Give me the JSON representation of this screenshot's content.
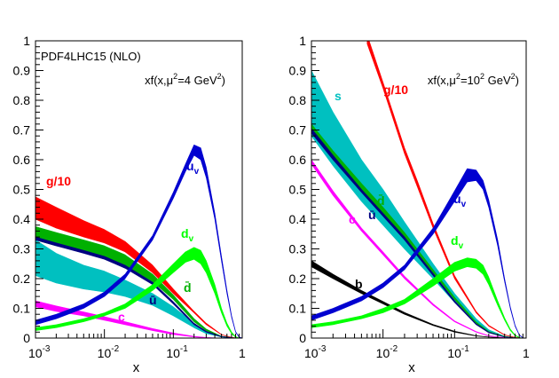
{
  "chart_data": [
    {
      "type": "area",
      "title": "PDF4LHC15 (NLO)",
      "annotation": "xf(x,μ²=4 GeV²)",
      "annotation_parts": [
        "xf(x,",
        "μ",
        "2",
        "=4 GeV",
        "2",
        ")"
      ],
      "xlabel": "x",
      "ylabel": "",
      "xscale": "log",
      "xlim": [
        0.001,
        1
      ],
      "ylim": [
        0,
        1
      ],
      "yticks": [
        "0",
        "0.1",
        "0.2",
        "0.3",
        "0.4",
        "0.5",
        "0.6",
        "0.7",
        "0.8",
        "0.9",
        "1"
      ],
      "xticks": [
        {
          "base": "10",
          "exp": "-3"
        },
        {
          "base": "10",
          "exp": "-2"
        },
        {
          "base": "10",
          "exp": "-1"
        },
        {
          "base": "1",
          "exp": ""
        }
      ],
      "series": [
        {
          "name": "s",
          "label": "s",
          "show_label": false,
          "color": "#00c0c0",
          "x": [
            0.001,
            0.002,
            0.005,
            0.01,
            0.02,
            0.05,
            0.1,
            0.2,
            0.3,
            0.5,
            0.7,
            0.9
          ],
          "lower": [
            0.21,
            0.185,
            0.165,
            0.155,
            0.14,
            0.11,
            0.075,
            0.035,
            0.015,
            0.004,
            0.001,
            0
          ],
          "upper": [
            0.33,
            0.285,
            0.245,
            0.225,
            0.195,
            0.15,
            0.105,
            0.05,
            0.022,
            0.006,
            0.0015,
            0
          ]
        },
        {
          "name": "g/10",
          "label": "g/10",
          "show_label": true,
          "color": "#ff0000",
          "x": [
            0.001,
            0.002,
            0.005,
            0.01,
            0.02,
            0.05,
            0.1,
            0.2,
            0.3,
            0.5,
            0.7,
            0.9
          ],
          "lower": [
            0.4,
            0.37,
            0.34,
            0.32,
            0.29,
            0.22,
            0.15,
            0.085,
            0.045,
            0.011,
            0.002,
            0
          ],
          "upper": [
            0.475,
            0.44,
            0.395,
            0.365,
            0.325,
            0.245,
            0.165,
            0.09,
            0.05,
            0.012,
            0.0025,
            0
          ]
        },
        {
          "name": "dbar",
          "label": "d̄",
          "show_label": true,
          "color": "#00b000",
          "x": [
            0.001,
            0.002,
            0.005,
            0.01,
            0.02,
            0.05,
            0.1,
            0.2,
            0.3,
            0.5,
            0.7,
            0.9
          ],
          "lower": [
            0.33,
            0.31,
            0.29,
            0.27,
            0.245,
            0.19,
            0.13,
            0.055,
            0.025,
            0.005,
            0.001,
            0
          ],
          "upper": [
            0.375,
            0.355,
            0.33,
            0.31,
            0.28,
            0.215,
            0.145,
            0.065,
            0.03,
            0.006,
            0.0015,
            0
          ]
        },
        {
          "name": "ubar",
          "label": "ū",
          "show_label": true,
          "color": "#000080",
          "x": [
            0.001,
            0.002,
            0.005,
            0.01,
            0.02,
            0.05,
            0.1,
            0.2,
            0.3,
            0.5,
            0.7,
            0.9
          ],
          "lower": [
            0.33,
            0.31,
            0.285,
            0.265,
            0.235,
            0.18,
            0.115,
            0.045,
            0.02,
            0.004,
            0.001,
            0
          ],
          "upper": [
            0.34,
            0.32,
            0.295,
            0.275,
            0.245,
            0.188,
            0.122,
            0.05,
            0.023,
            0.005,
            0.0012,
            0
          ]
        },
        {
          "name": "c",
          "label": "c",
          "show_label": true,
          "color": "#ff00ff",
          "x": [
            0.001,
            0.002,
            0.005,
            0.01,
            0.02,
            0.05,
            0.1,
            0.2,
            0.3,
            0.5,
            0.7,
            0.9
          ],
          "lower": [
            0.105,
            0.09,
            0.075,
            0.06,
            0.045,
            0.025,
            0.012,
            0.004,
            0.001,
            0,
            0,
            0
          ],
          "upper": [
            0.125,
            0.108,
            0.088,
            0.072,
            0.055,
            0.032,
            0.017,
            0.006,
            0.002,
            0,
            0,
            0
          ]
        },
        {
          "name": "u_v",
          "label": "u",
          "sub": "v",
          "show_label": true,
          "color": "#0000d0",
          "x": [
            0.001,
            0.002,
            0.005,
            0.01,
            0.02,
            0.05,
            0.1,
            0.15,
            0.2,
            0.25,
            0.3,
            0.4,
            0.5,
            0.6,
            0.7,
            0.8,
            0.9,
            1.0
          ],
          "lower": [
            0.045,
            0.065,
            0.1,
            0.14,
            0.2,
            0.33,
            0.47,
            0.56,
            0.615,
            0.6,
            0.54,
            0.4,
            0.26,
            0.15,
            0.07,
            0.02,
            0.003,
            0
          ],
          "upper": [
            0.06,
            0.08,
            0.115,
            0.155,
            0.215,
            0.345,
            0.49,
            0.585,
            0.65,
            0.64,
            0.575,
            0.42,
            0.275,
            0.16,
            0.075,
            0.022,
            0.004,
            0
          ]
        },
        {
          "name": "d_v",
          "label": "d",
          "sub": "v",
          "show_label": true,
          "color": "#00ff00",
          "x": [
            0.001,
            0.002,
            0.005,
            0.01,
            0.02,
            0.05,
            0.1,
            0.15,
            0.2,
            0.25,
            0.3,
            0.4,
            0.5,
            0.6,
            0.7,
            0.8,
            0.9,
            1.0
          ],
          "lower": [
            0.025,
            0.035,
            0.055,
            0.075,
            0.1,
            0.16,
            0.22,
            0.255,
            0.265,
            0.25,
            0.22,
            0.15,
            0.085,
            0.04,
            0.015,
            0.003,
            0,
            0
          ],
          "upper": [
            0.035,
            0.045,
            0.065,
            0.085,
            0.115,
            0.18,
            0.25,
            0.29,
            0.305,
            0.295,
            0.26,
            0.18,
            0.1,
            0.05,
            0.02,
            0.005,
            0,
            0
          ]
        }
      ]
    },
    {
      "type": "area",
      "title": "",
      "annotation": "xf(x,μ²=10² GeV²)",
      "annotation_parts": [
        "xf(x,",
        "μ",
        "2",
        "=10",
        "2",
        " GeV",
        "2",
        ")"
      ],
      "xlabel": "x",
      "ylabel": "",
      "xscale": "log",
      "xlim": [
        0.001,
        1
      ],
      "ylim": [
        0,
        1
      ],
      "yticks": [
        "0",
        "0.1",
        "0.2",
        "0.3",
        "0.4",
        "0.5",
        "0.6",
        "0.7",
        "0.8",
        "0.9",
        "1"
      ],
      "xticks": [
        {
          "base": "10",
          "exp": "-3"
        },
        {
          "base": "10",
          "exp": "-2"
        },
        {
          "base": "10",
          "exp": "-1"
        },
        {
          "base": "1",
          "exp": ""
        }
      ],
      "series": [
        {
          "name": "s",
          "label": "s",
          "show_label": true,
          "color": "#00c0c0",
          "x": [
            0.001,
            0.002,
            0.005,
            0.01,
            0.02,
            0.05,
            0.1,
            0.2,
            0.3,
            0.5,
            0.7,
            0.9
          ],
          "lower": [
            0.68,
            0.58,
            0.46,
            0.38,
            0.3,
            0.2,
            0.12,
            0.05,
            0.02,
            0.004,
            0.001,
            0
          ],
          "upper": [
            0.9,
            0.76,
            0.6,
            0.5,
            0.39,
            0.25,
            0.15,
            0.065,
            0.028,
            0.006,
            0.0015,
            0
          ]
        },
        {
          "name": "g/10",
          "label": "g/10",
          "show_label": true,
          "color": "#ff0000",
          "x": [
            0.006,
            0.01,
            0.02,
            0.03,
            0.05,
            0.1,
            0.2,
            0.3,
            0.5,
            0.7,
            0.9
          ],
          "lower": [
            0.99,
            0.84,
            0.62,
            0.51,
            0.37,
            0.2,
            0.085,
            0.04,
            0.01,
            0.002,
            0
          ],
          "upper": [
            1.02,
            0.86,
            0.64,
            0.53,
            0.385,
            0.21,
            0.09,
            0.043,
            0.011,
            0.0025,
            0
          ]
        },
        {
          "name": "dbar",
          "label": "d̄",
          "show_label": true,
          "color": "#00b000",
          "x": [
            0.001,
            0.002,
            0.005,
            0.01,
            0.02,
            0.05,
            0.1,
            0.2,
            0.3,
            0.5,
            0.7,
            0.9
          ],
          "lower": [
            0.7,
            0.61,
            0.5,
            0.42,
            0.34,
            0.22,
            0.13,
            0.05,
            0.02,
            0.004,
            0.001,
            0
          ],
          "upper": [
            0.72,
            0.63,
            0.52,
            0.44,
            0.355,
            0.23,
            0.137,
            0.054,
            0.022,
            0.005,
            0.0012,
            0
          ]
        },
        {
          "name": "ubar",
          "label": "ū",
          "show_label": true,
          "color": "#000080",
          "x": [
            0.001,
            0.002,
            0.005,
            0.01,
            0.02,
            0.05,
            0.1,
            0.2,
            0.3,
            0.5,
            0.7,
            0.9
          ],
          "lower": [
            0.69,
            0.6,
            0.49,
            0.41,
            0.33,
            0.21,
            0.12,
            0.045,
            0.018,
            0.003,
            0.0008,
            0
          ],
          "upper": [
            0.705,
            0.615,
            0.5,
            0.42,
            0.34,
            0.218,
            0.126,
            0.048,
            0.02,
            0.004,
            0.001,
            0
          ]
        },
        {
          "name": "c",
          "label": "c",
          "show_label": true,
          "color": "#ff00ff",
          "x": [
            0.001,
            0.002,
            0.005,
            0.01,
            0.02,
            0.05,
            0.1,
            0.2,
            0.3,
            0.5,
            0.7,
            0.9
          ],
          "lower": [
            0.585,
            0.48,
            0.36,
            0.28,
            0.2,
            0.11,
            0.055,
            0.02,
            0.007,
            0.001,
            0,
            0
          ],
          "upper": [
            0.6,
            0.495,
            0.37,
            0.29,
            0.208,
            0.115,
            0.058,
            0.022,
            0.008,
            0.0012,
            0,
            0
          ]
        },
        {
          "name": "b",
          "label": "b",
          "show_label": true,
          "color": "#000000",
          "x": [
            0.001,
            0.002,
            0.005,
            0.01,
            0.02,
            0.05,
            0.1,
            0.2,
            0.3,
            0.5,
            0.7,
            0.9
          ],
          "lower": [
            0.24,
            0.2,
            0.15,
            0.115,
            0.08,
            0.042,
            0.02,
            0.007,
            0.003,
            0.0005,
            0,
            0
          ],
          "upper": [
            0.26,
            0.215,
            0.16,
            0.123,
            0.086,
            0.046,
            0.023,
            0.008,
            0.0035,
            0.0006,
            0,
            0
          ]
        },
        {
          "name": "u_v",
          "label": "u",
          "sub": "v",
          "show_label": true,
          "color": "#0000d0",
          "x": [
            0.001,
            0.002,
            0.005,
            0.01,
            0.02,
            0.05,
            0.1,
            0.15,
            0.2,
            0.25,
            0.3,
            0.4,
            0.5,
            0.6,
            0.7,
            0.8,
            0.9,
            1.0
          ],
          "lower": [
            0.06,
            0.085,
            0.125,
            0.17,
            0.23,
            0.35,
            0.46,
            0.525,
            0.53,
            0.5,
            0.44,
            0.31,
            0.19,
            0.1,
            0.04,
            0.01,
            0.001,
            0
          ],
          "upper": [
            0.075,
            0.1,
            0.14,
            0.185,
            0.245,
            0.37,
            0.495,
            0.57,
            0.565,
            0.53,
            0.465,
            0.33,
            0.2,
            0.105,
            0.043,
            0.011,
            0.0015,
            0
          ]
        },
        {
          "name": "d_v",
          "label": "d",
          "sub": "v",
          "show_label": true,
          "color": "#00ff00",
          "x": [
            0.001,
            0.002,
            0.005,
            0.01,
            0.02,
            0.05,
            0.1,
            0.15,
            0.2,
            0.25,
            0.3,
            0.4,
            0.5,
            0.6,
            0.7,
            0.8,
            0.9,
            1.0
          ],
          "lower": [
            0.035,
            0.045,
            0.065,
            0.085,
            0.115,
            0.175,
            0.225,
            0.24,
            0.235,
            0.215,
            0.18,
            0.11,
            0.06,
            0.025,
            0.008,
            0.001,
            0,
            0
          ],
          "upper": [
            0.045,
            0.055,
            0.075,
            0.1,
            0.13,
            0.2,
            0.255,
            0.27,
            0.265,
            0.245,
            0.205,
            0.125,
            0.068,
            0.03,
            0.01,
            0.002,
            0,
            0
          ]
        }
      ]
    }
  ]
}
